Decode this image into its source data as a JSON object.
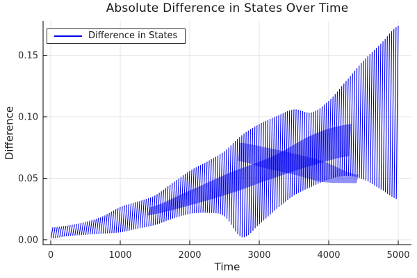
{
  "title": {
    "text": "Absolute Difference in States Over Time"
  },
  "legend": {
    "entries": [
      {
        "label": "Difference in States",
        "color": "#0000EE"
      }
    ],
    "border_color": "#2a2a2a",
    "background": "#ffffff",
    "position": "top-left"
  },
  "colors": {
    "series": "#0000EE",
    "grid": "#e5e5e5",
    "axis": "#000000",
    "title_text": "#1a1a1a",
    "tick_text": "#2b2b2b",
    "background": "#ffffff"
  },
  "chart_data": {
    "type": "line",
    "title": "Absolute Difference in States Over Time",
    "xlabel": "Time",
    "ylabel": "Difference",
    "xlim": [
      -110,
      5190
    ],
    "ylim": [
      -0.004,
      0.178
    ],
    "grid": true,
    "legend_position": "top-left",
    "xticks": [
      {
        "v": 0,
        "label": "0"
      },
      {
        "v": 1000,
        "label": "1000"
      },
      {
        "v": 2000,
        "label": "2000"
      },
      {
        "v": 3000,
        "label": "3000"
      },
      {
        "v": 4000,
        "label": "4000"
      },
      {
        "v": 5000,
        "label": "5000"
      }
    ],
    "yticks": [
      {
        "v": 0.0,
        "label": "0.00"
      },
      {
        "v": 0.05,
        "label": "0.05"
      },
      {
        "v": 0.1,
        "label": "0.10"
      },
      {
        "v": 0.15,
        "label": "0.15"
      }
    ],
    "series": [
      {
        "name": "Difference in States",
        "color": "#0000EE",
        "style": "rapid absolute-value oscillation rendered as slanted aliased strokes between envelopes",
        "n_oscillations": 160,
        "oscillation_spacing_t": 31.25,
        "stroke_lean_t": 28,
        "envelope_t": [
          0,
          250,
          500,
          750,
          1000,
          1250,
          1500,
          1750,
          2000,
          2250,
          2500,
          2750,
          3000,
          3250,
          3500,
          3750,
          4000,
          4250,
          4500,
          4750,
          5000
        ],
        "envelope_upper": [
          0.01,
          0.0115,
          0.0145,
          0.019,
          0.0265,
          0.031,
          0.036,
          0.046,
          0.056,
          0.0635,
          0.072,
          0.085,
          0.094,
          0.1005,
          0.106,
          0.1035,
          0.113,
          0.129,
          0.1455,
          0.1595,
          0.174
        ],
        "envelope_lower": [
          0.001,
          0.003,
          0.004,
          0.005,
          0.006,
          0.009,
          0.012,
          0.017,
          0.021,
          0.022,
          0.019,
          0.002,
          0.0125,
          0.025,
          0.036,
          0.043,
          0.049,
          0.052,
          0.049,
          0.041,
          0.0325
        ]
      }
    ],
    "apparent_dense_bands": [
      {
        "t": [
          1400,
          2000,
          2600,
          3200,
          3800,
          4300
        ],
        "lo": [
          0.02,
          0.028,
          0.038,
          0.05,
          0.061,
          0.068
        ],
        "hi": [
          0.026,
          0.04,
          0.055,
          0.068,
          0.086,
          0.094
        ],
        "spacing_t": 10.4,
        "opacity": 0.5
      },
      {
        "t": [
          2700,
          3100,
          3500,
          3900,
          4400
        ],
        "lo": [
          0.064,
          0.058,
          0.053,
          0.047,
          0.046
        ],
        "hi": [
          0.079,
          0.075,
          0.07,
          0.064,
          0.053
        ],
        "spacing_t": 10.4,
        "opacity": 0.45
      }
    ]
  }
}
